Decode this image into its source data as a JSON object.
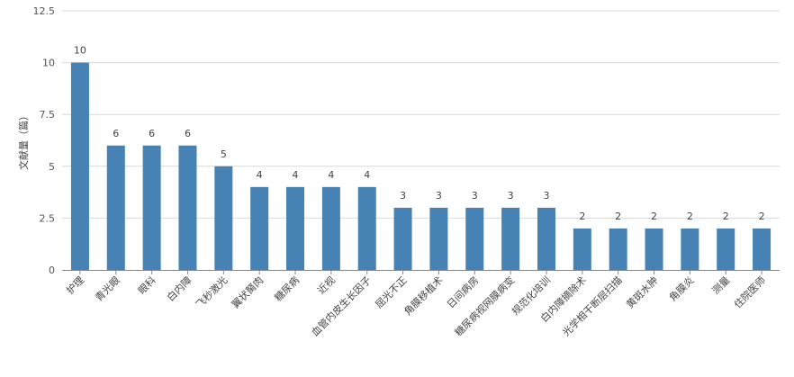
{
  "chart_data": {
    "type": "bar",
    "ylabel": "文献量（篇）",
    "ylim": [
      0,
      12.5
    ],
    "yticks": [
      "0",
      "2.5",
      "5",
      "7.5",
      "10",
      "12.5"
    ],
    "ytick_values": [
      0,
      2.5,
      5,
      7.5,
      10,
      12.5
    ],
    "grid": true,
    "bar_color": "#4682b4",
    "categories": [
      "护理",
      "青光眼",
      "眼科",
      "白内障",
      "飞秒激光",
      "翼状胬肉",
      "糖尿病",
      "近视",
      "血管内皮生长因子",
      "屈光不正",
      "角膜移植术",
      "日间病房",
      "糖尿病视网膜病变",
      "规范化培训",
      "白内障摘除术",
      "光学相干断层扫描",
      "黄斑水肿",
      "角膜炎",
      "测量",
      "住院医师"
    ],
    "values": [
      10,
      6,
      6,
      6,
      5,
      4,
      4,
      4,
      4,
      3,
      3,
      3,
      3,
      3,
      2,
      2,
      2,
      2,
      2,
      2
    ],
    "data_labels": [
      "10",
      "6",
      "6",
      "6",
      "5",
      "4",
      "4",
      "4",
      "4",
      "3",
      "3",
      "3",
      "3",
      "3",
      "2",
      "2",
      "2",
      "2",
      "2",
      "2"
    ]
  }
}
